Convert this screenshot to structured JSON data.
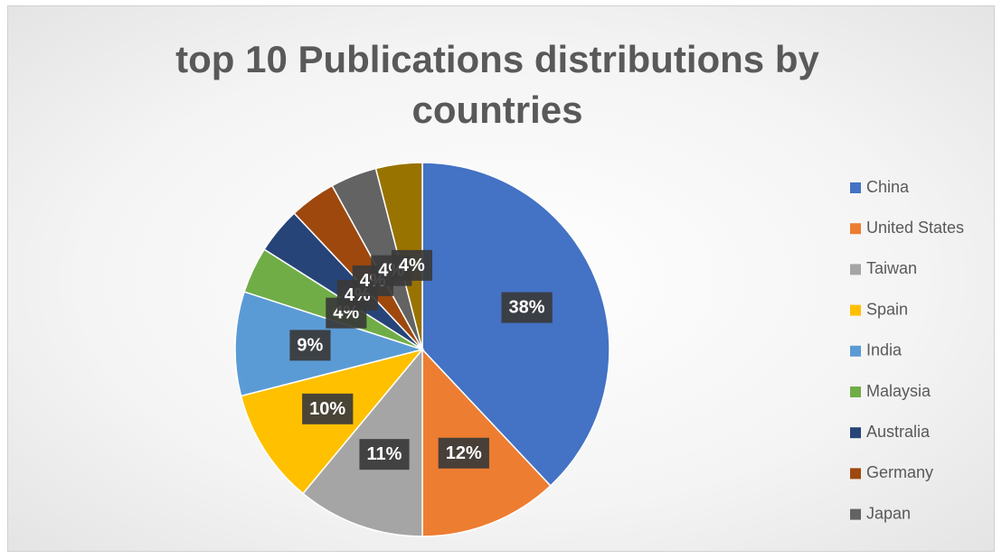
{
  "chart_data": {
    "type": "pie",
    "title": "top 10 Publications distributions by countries",
    "categories": [
      "China",
      "United States",
      "Taiwan",
      "Spain",
      "India",
      "Malaysia",
      "Australia",
      "Germany",
      "Japan",
      null
    ],
    "values": [
      38,
      12,
      11,
      10,
      9,
      4,
      4,
      4,
      4,
      4
    ],
    "value_labels": [
      "38%",
      "12%",
      "11%",
      "10%",
      "9%",
      "4%",
      "4%",
      "4%",
      "4%",
      "4%"
    ],
    "colors": [
      "#4472c4",
      "#ed7d31",
      "#a5a5a5",
      "#ffc000",
      "#5b9bd5",
      "#70ad47",
      "#264478",
      "#9e480e",
      "#636363",
      "#997300"
    ],
    "legend": "right"
  }
}
